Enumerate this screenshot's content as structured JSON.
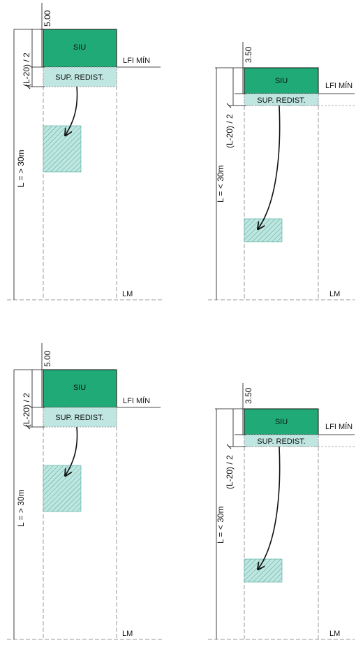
{
  "diagram": {
    "colors": {
      "siu_fill": "#1faa77",
      "redist_fill": "#bfe6e0",
      "hatch_fill": "#bfe6e0",
      "hatch_line": "#4aa898",
      "line": "#111111",
      "dash": "#9a9a9a"
    },
    "panels": [
      {
        "siu_label": "SIU",
        "redist_label": "SUP. REDIST.",
        "lfi_label": "LFI MÍN",
        "lm_label": "LM",
        "depth_label": "5.00",
        "half_label": "(L-20) / 2",
        "length_label": "L = > 30m"
      },
      {
        "siu_label": "SIU",
        "redist_label": "SUP. REDIST.",
        "lfi_label": "LFI MÍN",
        "lm_label": "LM",
        "depth_label": "3.50",
        "half_label": "(L-20) / 2",
        "length_label": "L = < 30m"
      },
      {
        "siu_label": "SIU",
        "redist_label": "SUP. REDIST.",
        "lfi_label": "LFI MÍN",
        "lm_label": "LM",
        "depth_label": "5.00",
        "half_label": "(L-20) / 2",
        "length_label": "L = > 30m"
      },
      {
        "siu_label": "SIU",
        "redist_label": "SUP. REDIST.",
        "lfi_label": "LFI MÍN",
        "lm_label": "LM",
        "depth_label": "3.50",
        "half_label": "(L-20) / 2",
        "length_label": "L = < 30m"
      }
    ]
  }
}
